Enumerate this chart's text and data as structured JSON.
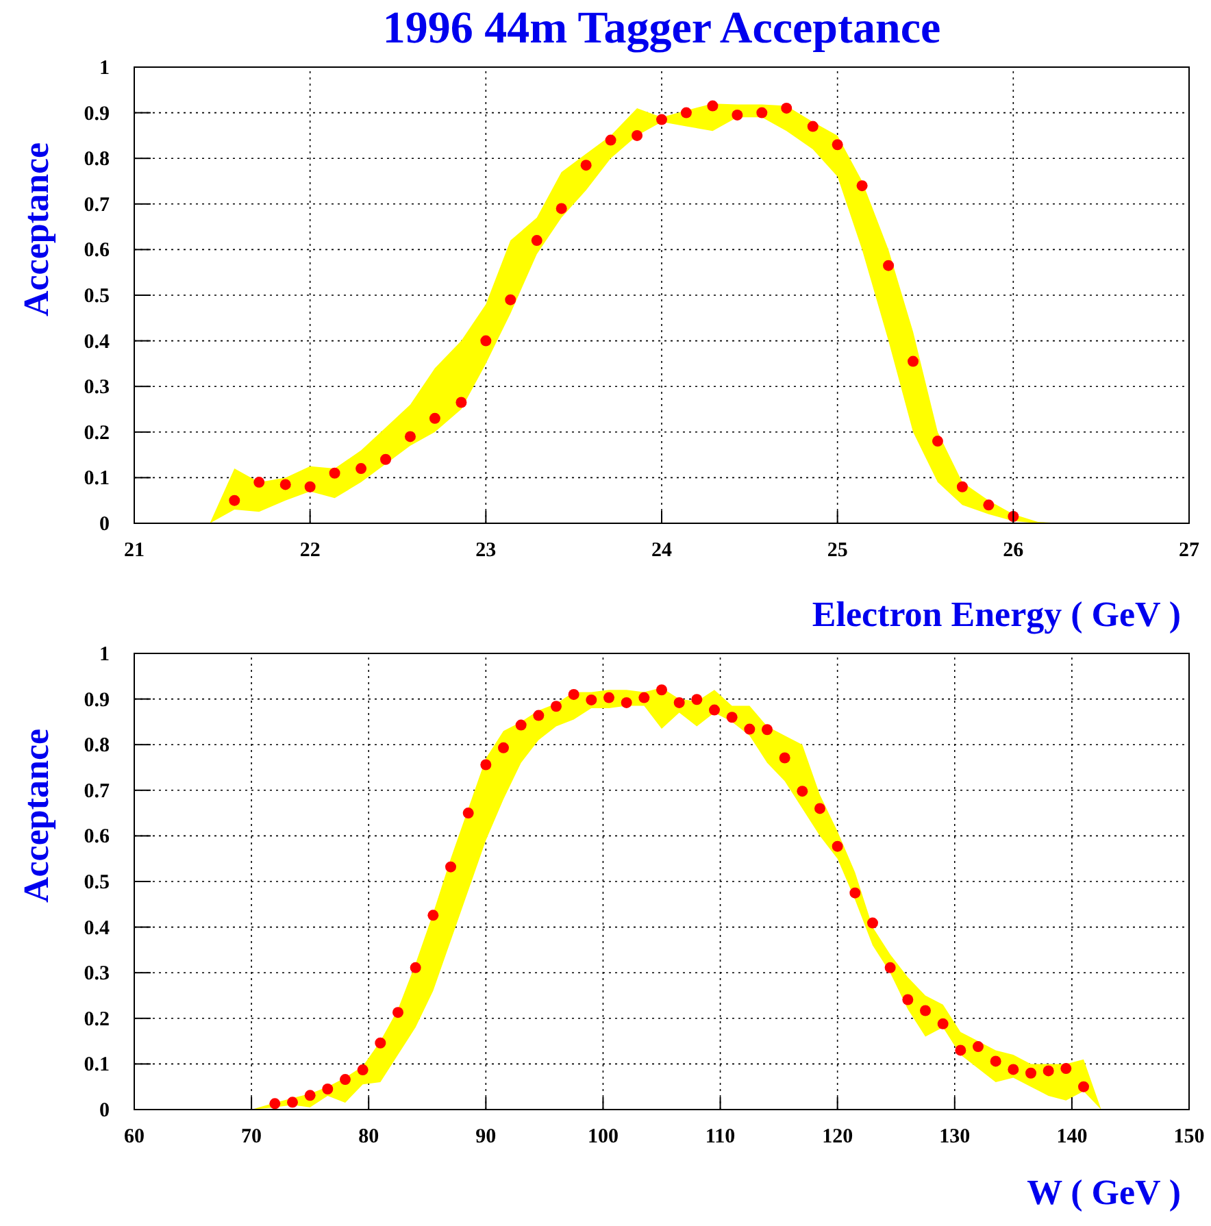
{
  "chart_data": [
    {
      "type": "scatter",
      "title": "1996 44m Tagger Acceptance",
      "xlabel": "Electron Energy ( GeV )",
      "ylabel": "Acceptance",
      "xlim": [
        21,
        27
      ],
      "xticks": [
        21,
        22,
        23,
        24,
        25,
        26,
        27
      ],
      "ylim": [
        0,
        1
      ],
      "yticks": [
        0,
        0.1,
        0.2,
        0.3,
        0.4,
        0.5,
        0.6,
        0.7,
        0.8,
        0.9,
        1
      ],
      "grid": true,
      "marker": "circle",
      "series": [
        {
          "color": "#ff0000",
          "x": [
            21,
            21.43,
            21.57,
            21.71,
            21.86,
            22,
            22.14,
            22.29,
            22.43,
            22.57,
            22.71,
            22.86,
            23,
            23.14,
            23.29,
            23.43,
            23.57,
            23.71,
            23.86,
            24,
            24.14,
            24.29,
            24.43,
            24.57,
            24.71,
            24.86,
            25,
            25.14,
            25.29,
            25.43,
            25.57,
            25.71,
            25.86,
            26,
            26.14,
            26.3,
            27
          ],
          "values": [
            null,
            null,
            0.05,
            0.09,
            0.085,
            0.08,
            0.11,
            0.12,
            0.14,
            0.19,
            0.23,
            0.265,
            0.4,
            0.49,
            0.62,
            0.69,
            0.785,
            0.84,
            0.85,
            0.885,
            0.9,
            0.915,
            0.895,
            0.9,
            0.91,
            0.87,
            0.83,
            0.74,
            0.565,
            0.355,
            0.18,
            0.08,
            0.04,
            0.015,
            null,
            null,
            null
          ],
          "lower": [
            0,
            0,
            0.03,
            0.025,
            0.05,
            0.07,
            0.055,
            0.09,
            0.13,
            0.17,
            0.2,
            0.25,
            0.35,
            0.46,
            0.59,
            0.67,
            0.73,
            0.8,
            0.85,
            0.88,
            0.87,
            0.86,
            0.89,
            0.89,
            0.86,
            0.82,
            0.76,
            0.6,
            0.4,
            0.2,
            0.09,
            0.04,
            0.02,
            0.005,
            0,
            0,
            0
          ],
          "upper": [
            0,
            0,
            0.12,
            0.09,
            0.1,
            0.125,
            0.12,
            0.16,
            0.21,
            0.26,
            0.34,
            0.4,
            0.48,
            0.62,
            0.67,
            0.77,
            0.81,
            0.85,
            0.91,
            0.89,
            0.905,
            0.92,
            0.918,
            0.918,
            0.915,
            0.88,
            0.85,
            0.75,
            0.6,
            0.42,
            0.2,
            0.09,
            0.05,
            0.02,
            0.003,
            0,
            0
          ]
        }
      ]
    },
    {
      "type": "scatter",
      "xlabel": "W ( GeV )",
      "ylabel": "Acceptance",
      "xlim": [
        60,
        150
      ],
      "xticks": [
        60,
        70,
        80,
        90,
        100,
        110,
        120,
        130,
        140,
        150
      ],
      "ylim": [
        0,
        1
      ],
      "yticks": [
        0,
        0.1,
        0.2,
        0.3,
        0.4,
        0.5,
        0.6,
        0.7,
        0.8,
        0.9,
        1
      ],
      "grid": true,
      "marker": "circle",
      "series": [
        {
          "color": "#ff0000",
          "x": [
            60,
            70,
            72,
            73.5,
            75,
            76.5,
            78,
            79.5,
            81,
            82.5,
            84,
            85.5,
            87,
            88.5,
            90,
            91.5,
            93,
            94.5,
            96,
            97.5,
            99,
            100.5,
            102,
            103.5,
            105,
            106.5,
            108,
            109.5,
            111,
            112.5,
            114,
            115.5,
            117,
            118.5,
            120,
            121.5,
            123,
            124.5,
            126,
            127.5,
            129,
            130.5,
            132,
            133.5,
            135,
            136.5,
            138,
            139.5,
            141,
            142.5,
            150
          ],
          "values": [
            null,
            null,
            0.013,
            0.016,
            0.031,
            0.045,
            0.066,
            0.087,
            0.146,
            0.213,
            0.311,
            0.426,
            0.532,
            0.65,
            0.756,
            0.793,
            0.843,
            0.864,
            0.884,
            0.91,
            0.898,
            0.903,
            0.892,
            0.903,
            0.92,
            0.892,
            0.899,
            0.876,
            0.86,
            0.834,
            0.833,
            0.771,
            0.698,
            0.66,
            0.577,
            0.475,
            0.409,
            0.311,
            0.241,
            0.217,
            0.188,
            0.13,
            0.138,
            0.106,
            0.088,
            0.08,
            0.085,
            0.09,
            0.05,
            null,
            null
          ],
          "lower": [
            0,
            0,
            0.005,
            0.01,
            0.005,
            0.03,
            0.015,
            0.055,
            0.06,
            0.12,
            0.18,
            0.26,
            0.37,
            0.48,
            0.59,
            0.68,
            0.76,
            0.81,
            0.84,
            0.855,
            0.88,
            0.88,
            0.885,
            0.885,
            0.835,
            0.87,
            0.84,
            0.87,
            0.85,
            0.82,
            0.76,
            0.72,
            0.66,
            0.6,
            0.55,
            0.46,
            0.36,
            0.3,
            0.22,
            0.16,
            0.18,
            0.12,
            0.09,
            0.06,
            0.07,
            0.05,
            0.03,
            0.02,
            0.04,
            0,
            0
          ],
          "upper": [
            0,
            0,
            0.015,
            0.025,
            0.035,
            0.05,
            0.07,
            0.095,
            0.15,
            0.22,
            0.32,
            0.43,
            0.55,
            0.66,
            0.77,
            0.83,
            0.85,
            0.875,
            0.89,
            0.915,
            0.915,
            0.92,
            0.92,
            0.915,
            0.925,
            0.9,
            0.895,
            0.92,
            0.885,
            0.885,
            0.84,
            0.82,
            0.8,
            0.69,
            0.61,
            0.52,
            0.4,
            0.34,
            0.29,
            0.25,
            0.23,
            0.17,
            0.15,
            0.13,
            0.12,
            0.1,
            0.1,
            0.1,
            0.11,
            0,
            0
          ]
        }
      ]
    }
  ]
}
